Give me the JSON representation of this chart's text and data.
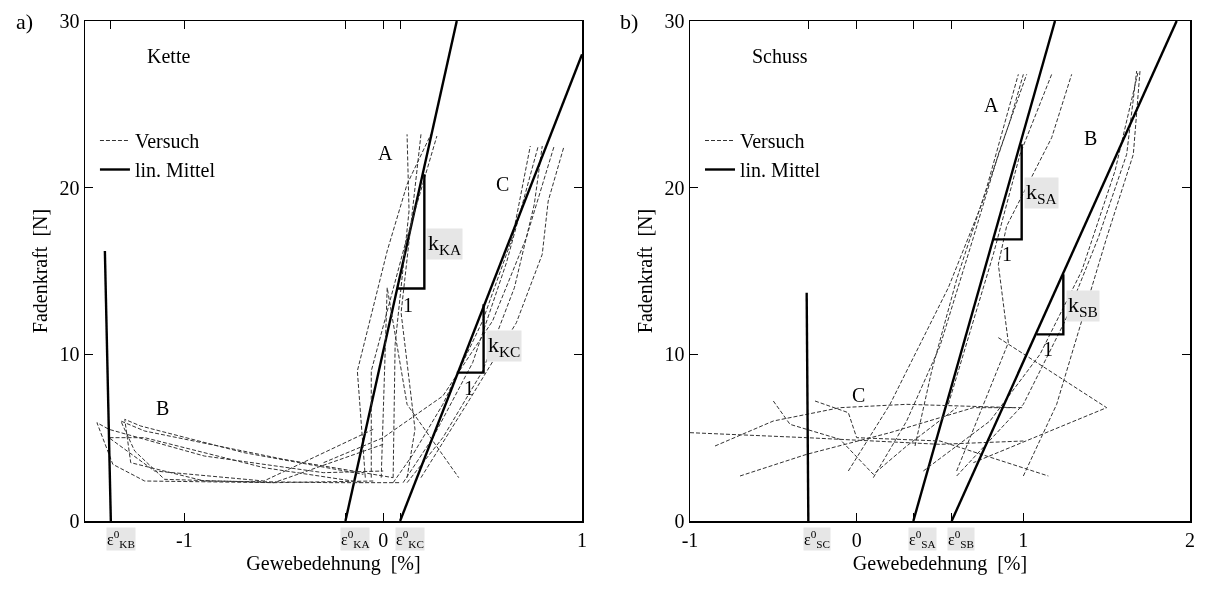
{
  "chart_data": [
    {
      "type": "line",
      "title": "a)",
      "xlabel": "Gewebedehnung  [%]",
      "ylabel": "Fadenkraft  [N]",
      "xlim": [
        -1.5,
        1
      ],
      "ylim": [
        0,
        30
      ],
      "xticks": [
        {
          "value": -1.37,
          "label": null
        },
        -1,
        {
          "value": -0.19,
          "label": null
        },
        0,
        {
          "value": 0.085,
          "label": null
        },
        1
      ],
      "yticks": [
        0,
        10,
        20,
        30
      ],
      "grid": false,
      "legend": "top left",
      "marker": "none",
      "annotations": [
        "Kette",
        "A",
        "B",
        "C",
        "1",
        {
          "text": "k$_{KA}$",
          "x": 0.31,
          "y": 16.6
        },
        {
          "text": "k$_{KC}$",
          "x": 0.61,
          "y": 10.5
        },
        {
          "text": "1",
          "x": 0.43,
          "y": 8.0
        },
        {
          "text": "ε$^{0}$$_{KB}$",
          "x": -1.37,
          "y": 0
        },
        {
          "text": "ε$^{0}$$_{KA}$",
          "x": -0.19,
          "y": 0
        },
        {
          "text": "ε$^{0}$$_{KC}$",
          "x": 0.085,
          "y": 0
        }
      ],
      "series": [
        {
          "name": "Versuch",
          "color": "#333333",
          "line_style": "dashed",
          "x": [
            -0.09,
            -0.13,
            0.02,
            0.12,
            0.24
          ],
          "values": [
            2.6,
            9.0,
            16.2,
            20.2,
            23.2
          ]
        },
        {
          "name": "lin. Mittel",
          "color": "#000000",
          "line_style": "solid",
          "x": [
            -0.19,
            0.37
          ],
          "values": [
            0,
            30
          ]
        },
        {
          "color": "#333333",
          "line_style": "dashed",
          "x": [
            -0.06,
            -0.06,
            0.11,
            0.27
          ],
          "values": [
            2.6,
            9.0,
            16.6,
            23.1
          ]
        },
        {
          "color": "#333333",
          "line_style": "dashed",
          "x": [
            0.05,
            0.06,
            0.13,
            0.12
          ],
          "values": [
            2.6,
            10.6,
            18.6,
            23.2
          ]
        },
        {
          "color": "#333333",
          "line_style": "dashed",
          "x": [
            0.12,
            0.16,
            0.09,
            0.19
          ],
          "values": [
            2.6,
            5.5,
            12.5,
            23.2
          ]
        },
        {
          "color": "#333333",
          "line_style": "dashed",
          "x": [
            -0.01,
            0.02,
            0.12,
            0.38
          ],
          "values": [
            2.6,
            14.0,
            7.0,
            2.6
          ]
        },
        {
          "color": "#333333",
          "line_style": "dashed",
          "x": [
            -0.05,
            -0.55,
            -1.2,
            -1.36,
            -1.44,
            -1.38,
            -0.9,
            -0.3,
            0.0
          ],
          "values": [
            2.4,
            2.3,
            2.4,
            3.4,
            5.9,
            5.5,
            3.9,
            2.9,
            3.0
          ]
        },
        {
          "color": "#333333",
          "line_style": "dashed",
          "x": [
            0.08,
            -0.25,
            -0.9,
            -1.27,
            -1.3,
            -1.22,
            -0.7,
            -0.1
          ],
          "values": [
            2.3,
            2.3,
            2.4,
            3.5,
            6.1,
            5.7,
            4.1,
            2.8
          ]
        },
        {
          "color": "#333333",
          "line_style": "dashed",
          "x": [
            0.0,
            -0.55,
            -1.1,
            -1.25,
            -1.32,
            -1.2,
            -0.5,
            0.05
          ],
          "values": [
            4.6,
            2.3,
            2.5,
            4.2,
            6.0,
            5.4,
            3.7,
            2.6
          ]
        },
        {
          "color": "#333333",
          "line_style": "dashed",
          "x": [
            -0.05,
            -0.6,
            -1.15,
            -1.38,
            -1.2,
            -0.6,
            -0.1
          ],
          "values": [
            5.5,
            2.4,
            3.0,
            5.0,
            5.0,
            3.2,
            2.3
          ]
        },
        {
          "color": "#333333",
          "line_style": "dashed",
          "x": [
            0.05,
            0.15,
            0.3,
            0.5,
            0.65,
            0.74
          ],
          "values": [
            2.3,
            4,
            7,
            12,
            17,
            22.5
          ]
        },
        {
          "color": "#333333",
          "line_style": "dashed",
          "x": [
            0.1,
            0.25,
            0.45,
            0.62,
            0.78
          ],
          "values": [
            2.3,
            5,
            9.5,
            15.5,
            22.5
          ]
        },
        {
          "color": "#333333",
          "line_style": "dashed",
          "x": [
            0.12,
            0.3,
            0.5,
            0.66,
            0.76,
            0.8
          ],
          "values": [
            2.3,
            5,
            9,
            14,
            19,
            22.5
          ]
        },
        {
          "color": "#333333",
          "line_style": "dashed",
          "x": [
            0.19,
            0.43,
            0.67,
            0.8,
            0.83,
            0.91
          ],
          "values": [
            2.6,
            7.2,
            11.9,
            16,
            19.2,
            22.5
          ]
        },
        {
          "color": "#333333",
          "line_style": "dashed",
          "x": [
            -0.3,
            0.0,
            0.3,
            0.55,
            0.72,
            0.86
          ],
          "values": [
            3.5,
            5.0,
            7.5,
            12,
            17,
            22.5
          ]
        },
        {
          "color": "#000000",
          "line_style": "solid",
          "x": [
            -1.37,
            -1.4
          ],
          "values": [
            0,
            16.2
          ]
        },
        {
          "color": "#000000",
          "line_style": "solid",
          "x": [
            0.085,
            1
          ],
          "values": [
            0,
            28.0
          ]
        },
        {
          "color": "#000000",
          "line_style": "solid",
          "x": [
            0.07,
            0.207,
            0.207
          ],
          "values": [
            13.95,
            13.95,
            20.8
          ]
        },
        {
          "color": "#000000",
          "line_style": "solid",
          "x": [
            0.37,
            0.505,
            0.505
          ],
          "values": [
            8.9,
            8.9,
            13.0
          ]
        }
      ]
    },
    {
      "type": "line",
      "title": "b)",
      "xlabel": "Gewebedehnung  [%]",
      "ylabel": "Fadenkraft  [N]",
      "xlim": [
        -1,
        2
      ],
      "ylim": [
        0,
        30
      ],
      "xticks": [
        -1,
        {
          "value": -0.29,
          "label": null
        },
        0,
        {
          "value": 0.34,
          "label": null
        },
        {
          "value": 0.57,
          "label": null
        },
        1,
        2
      ],
      "yticks": [
        0,
        10,
        20,
        30
      ],
      "grid": false,
      "legend": "top left",
      "marker": "none",
      "annotations": [
        "Schuss",
        "A",
        "B",
        "C",
        "1",
        {
          "text": "k$_{SA}$",
          "x": 1.11,
          "y": 19.7
        },
        {
          "text": "k$_{SB}$",
          "x": 1.36,
          "y": 12.9
        },
        {
          "text": "1",
          "x": 1.15,
          "y": 10.3
        },
        {
          "text": "ε$^{0}$$_{SC}$",
          "x": -0.29,
          "y": 0
        },
        {
          "text": "ε$^{0}$$_{SA}$",
          "x": 0.34,
          "y": 0
        },
        {
          "text": "ε$^{0}$$_{SB}$",
          "x": 0.57,
          "y": 0
        }
      ],
      "series": [
        {
          "name": "Versuch",
          "color": "#333333",
          "line_style": "dashed",
          "x": [
            0.1,
            0.3,
            0.5,
            0.7,
            0.85,
            1.02
          ],
          "values": [
            2.6,
            6,
            10.5,
            17,
            22,
            26.8
          ]
        },
        {
          "name": "lin. Mittel",
          "color": "#000000",
          "line_style": "solid",
          "x": [
            0.34,
            1.19
          ],
          "values": [
            0,
            30
          ]
        },
        {
          "color": "#333333",
          "line_style": "dashed",
          "x": [
            -0.05,
            0.2,
            0.55,
            0.75,
            0.92,
            1.0
          ],
          "values": [
            3,
            7,
            14,
            19,
            24,
            26.8
          ]
        },
        {
          "color": "#333333",
          "line_style": "dashed",
          "x": [
            0.35,
            0.45,
            0.6,
            0.78,
            0.97
          ],
          "values": [
            4.5,
            9,
            14.5,
            20,
            26.8
          ]
        },
        {
          "color": "#333333",
          "line_style": "dashed",
          "x": [
            0.55,
            0.7,
            0.82,
            0.98,
            1.17
          ],
          "values": [
            7,
            12,
            16,
            22,
            26.8
          ]
        },
        {
          "color": "#333333",
          "line_style": "dashed",
          "x": [
            0.6,
            0.91,
            0.85,
            0.9,
            1.17,
            1.29
          ],
          "values": [
            3.0,
            10.7,
            15.4,
            17.7,
            23.0,
            26.8
          ]
        },
        {
          "color": "#333333",
          "line_style": "dashed",
          "x": [
            0.4,
            0.8,
            1.1,
            1.35,
            1.55,
            1.69
          ],
          "values": [
            3,
            6,
            10,
            15,
            21,
            27
          ]
        },
        {
          "color": "#333333",
          "line_style": "dashed",
          "x": [
            0.6,
            1.0,
            1.25,
            1.45,
            1.62,
            1.68
          ],
          "values": [
            2.7,
            7,
            12,
            17,
            22,
            27
          ]
        },
        {
          "color": "#333333",
          "line_style": "dashed",
          "x": [
            1.0,
            1.2,
            1.35,
            1.5,
            1.66,
            1.7
          ],
          "values": [
            2.7,
            7,
            12,
            17,
            22,
            27
          ]
        },
        {
          "color": "#333333",
          "line_style": "dashed",
          "x": [
            0.85,
            1.5,
            0.7
          ],
          "values": [
            11,
            6.8,
            3.5
          ]
        },
        {
          "color": "#333333",
          "line_style": "dashed",
          "x": [
            -1,
            -0.3,
            0.5,
            1.0
          ],
          "values": [
            5.3,
            5.0,
            4.6,
            4.8
          ]
        },
        {
          "color": "#333333",
          "line_style": "dashed",
          "x": [
            -0.7,
            -0.3,
            0.2,
            0.7,
            1.0
          ],
          "values": [
            2.7,
            4.0,
            5.3,
            6.8,
            6.8
          ]
        },
        {
          "color": "#333333",
          "line_style": "dashed",
          "x": [
            -0.25,
            -0.05,
            0.0,
            0.5,
            1.15
          ],
          "values": [
            7.2,
            6.5,
            5.0,
            4.8,
            2.7
          ]
        },
        {
          "color": "#333333",
          "line_style": "dashed",
          "x": [
            -0.5,
            -0.4,
            -0.1,
            0.1,
            0.3,
            0.6
          ],
          "values": [
            7.2,
            5.8,
            4.9,
            2.8,
            4.5,
            6.8
          ]
        },
        {
          "color": "#333333",
          "line_style": "dashed",
          "x": [
            -0.85,
            -0.5,
            -0.1,
            0.3,
            0.95
          ],
          "values": [
            4.5,
            6.0,
            6.8,
            7.0,
            6.8
          ]
        },
        {
          "color": "#000000",
          "line_style": "solid",
          "x": [
            -0.29,
            -0.3
          ],
          "values": [
            0,
            13.7
          ]
        },
        {
          "color": "#000000",
          "line_style": "solid",
          "x": [
            0.57,
            1.92
          ],
          "values": [
            0,
            30
          ]
        },
        {
          "color": "#000000",
          "line_style": "solid",
          "x": [
            0.82,
            0.99,
            0.99
          ],
          "values": [
            16.9,
            16.9,
            22.6
          ]
        },
        {
          "color": "#000000",
          "line_style": "solid",
          "x": [
            1.08,
            1.24,
            1.24
          ],
          "values": [
            11.2,
            11.2,
            14.8
          ]
        }
      ]
    }
  ]
}
